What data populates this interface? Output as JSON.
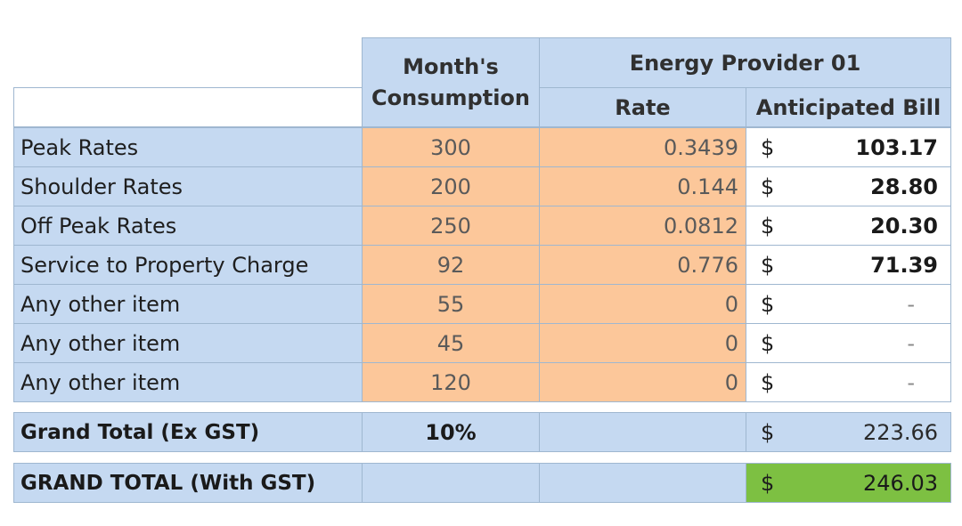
{
  "header": {
    "consumption_label": "Month's\nConsumption",
    "consumption_line1": "Month's",
    "consumption_line2": "Consumption",
    "provider": "Energy Provider 01",
    "rate": "Rate",
    "bill": "Anticipated Bill"
  },
  "currency_symbol": "$",
  "rows": [
    {
      "label": "Peak Rates",
      "consumption": "300",
      "rate": "0.3439",
      "bill": "103.17"
    },
    {
      "label": "Shoulder Rates",
      "consumption": "200",
      "rate": "0.144",
      "bill": "28.80"
    },
    {
      "label": "Off Peak Rates",
      "consumption": "250",
      "rate": "0.0812",
      "bill": "20.30"
    },
    {
      "label": "Service to Property Charge",
      "consumption": "92",
      "rate": "0.776",
      "bill": "71.39"
    },
    {
      "label": "Any other item",
      "consumption": "55",
      "rate": "0",
      "bill": "-"
    },
    {
      "label": "Any other item",
      "consumption": "45",
      "rate": "0",
      "bill": "-"
    },
    {
      "label": "Any other item",
      "consumption": "120",
      "rate": "0",
      "bill": "-"
    }
  ],
  "totals": {
    "ex_gst_label": "Grand Total (Ex GST)",
    "gst_rate": "10%",
    "ex_gst_amount": "223.66",
    "with_gst_label": "GRAND TOTAL (With GST)",
    "with_gst_amount": "246.03"
  },
  "colors": {
    "header_blue": "#c5d9f1",
    "input_orange": "#fcc79a",
    "total_green": "#7dc042"
  }
}
